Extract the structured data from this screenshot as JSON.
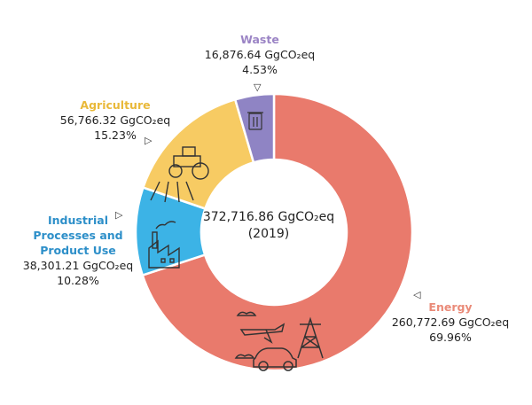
{
  "chart_data": {
    "type": "pie",
    "unit": "GgCO₂eq",
    "total_value": "372,716.86",
    "total_unit": "GgCO₂eq",
    "total_year": "(2019)",
    "series": [
      {
        "name": "Energy",
        "value": 260772.69,
        "value_label": "260,772.69 GgCO₂eq",
        "percent_label": "69.96%",
        "color": "#e97a6c",
        "icon": "energy-transport-icon"
      },
      {
        "name": "Industrial Processes and Product Use",
        "name_lines": [
          "Industrial",
          "Processes and",
          "Product Use"
        ],
        "value": 38301.21,
        "value_label": "38,301.21 GgCO₂eq",
        "percent_label": "10.28%",
        "color": "#3cb3e6",
        "icon": "factory-icon"
      },
      {
        "name": "Agriculture",
        "value": 56766.32,
        "value_label": "56,766.32 GgCO₂eq",
        "percent_label": "15.23%",
        "color": "#f7cb63",
        "icon": "tractor-icon"
      },
      {
        "name": "Waste",
        "value": 16876.64,
        "value_label": "16,876.64 GgCO₂eq",
        "percent_label": "4.53%",
        "color": "#8f84c4",
        "icon": "trash-bin-icon"
      }
    ],
    "name_colors": {
      "Energy": "#ea8b79",
      "Industrial": "#2d8fc9",
      "Agriculture": "#e9b93a",
      "Waste": "#9b84c5"
    }
  }
}
